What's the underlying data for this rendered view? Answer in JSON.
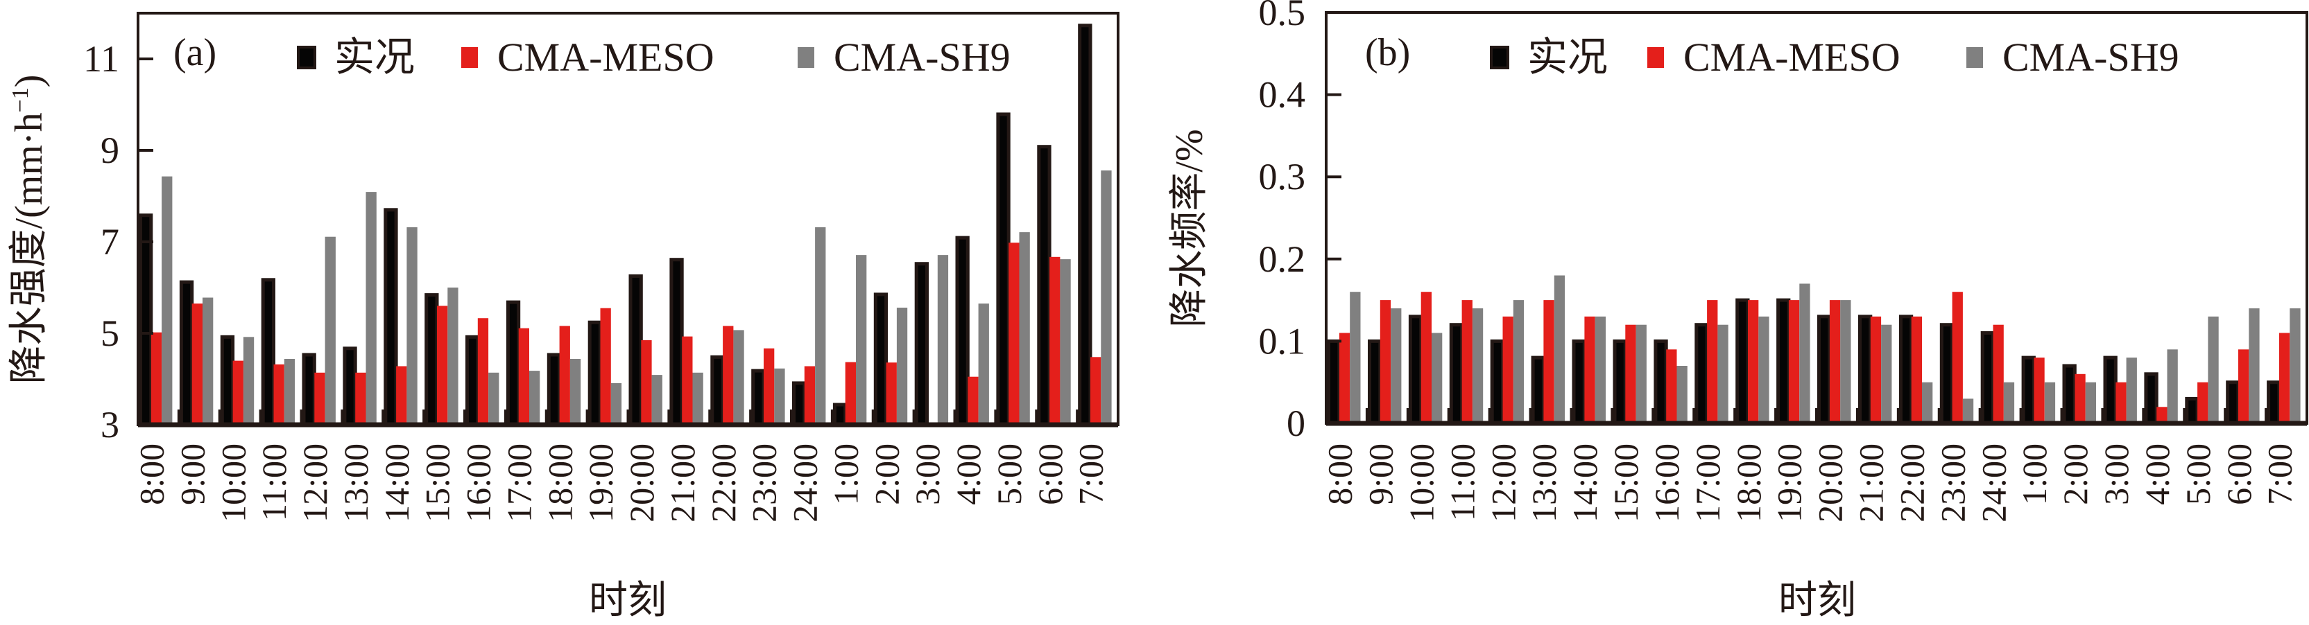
{
  "colors": {
    "observed": "#050505",
    "observed_outline": "#231815",
    "meso": "#e41f1b",
    "sh9": "#808080",
    "axis": "#231815"
  },
  "legend_labels": [
    "实况",
    "CMA-MESO",
    "CMA-SH9"
  ],
  "chart_data": [
    {
      "type": "bar",
      "panel_label": "(a)",
      "title": "",
      "xlabel": "时刻",
      "ylabel": "降水强度/(mm·h⁻¹)",
      "ylabel_parts": {
        "main": "降水强度/(mm·h",
        "sup": "−1",
        "close": ")"
      },
      "ylim": [
        3,
        12
      ],
      "yticks": [
        3,
        5,
        7,
        9,
        11
      ],
      "ytick_labels": [
        "3",
        "5",
        "7",
        "9",
        "11"
      ],
      "grid": false,
      "legend_position": "top",
      "categories": [
        "8:00",
        "9:00",
        "10:00",
        "11:00",
        "12:00",
        "13:00",
        "14:00",
        "15:00",
        "16:00",
        "17:00",
        "18:00",
        "19:00",
        "20:00",
        "21:00",
        "22:00",
        "23:00",
        "24:00",
        "1:00",
        "2:00",
        "3:00",
        "4:00",
        "5:00",
        "6:00",
        "7:00"
      ],
      "series": [
        {
          "name": "实况",
          "values": [
            7.58,
            6.12,
            4.92,
            6.17,
            4.53,
            4.67,
            7.7,
            5.84,
            4.92,
            5.68,
            4.53,
            5.24,
            6.25,
            6.61,
            4.48,
            4.18,
            3.91,
            3.44,
            5.85,
            6.52,
            7.09,
            9.79,
            9.08,
            11.73
          ]
        },
        {
          "name": "CMA-MESO",
          "values": [
            5.02,
            5.65,
            4.4,
            4.32,
            4.14,
            4.14,
            4.28,
            5.6,
            5.33,
            5.11,
            5.16,
            5.55,
            4.85,
            4.93,
            5.16,
            4.67,
            4.28,
            4.37,
            4.36,
            3.03,
            4.05,
            6.98,
            6.67,
            4.48
          ]
        },
        {
          "name": "CMA-SH9",
          "values": [
            8.43,
            5.78,
            4.92,
            4.44,
            7.11,
            8.09,
            7.32,
            6.0,
            4.14,
            4.18,
            4.44,
            3.91,
            4.09,
            4.14,
            5.07,
            4.23,
            7.32,
            6.71,
            5.56,
            6.71,
            5.65,
            7.21,
            6.62,
            8.56
          ]
        }
      ]
    },
    {
      "type": "bar",
      "panel_label": "(b)",
      "title": "",
      "xlabel": "时刻",
      "ylabel": "降水频率/%",
      "ylim": [
        0,
        0.5
      ],
      "yticks": [
        0,
        0.1,
        0.2,
        0.3,
        0.4,
        0.5
      ],
      "ytick_labels": [
        "0",
        "0.1",
        "0.2",
        "0.3",
        "0.4",
        "0.5"
      ],
      "grid": false,
      "legend_position": "top",
      "categories": [
        "8:00",
        "9:00",
        "10:00",
        "11:00",
        "12:00",
        "13:00",
        "14:00",
        "15:00",
        "16:00",
        "17:00",
        "18:00",
        "19:00",
        "20:00",
        "21:00",
        "22:00",
        "23:00",
        "24:00",
        "1:00",
        "2:00",
        "3:00",
        "4:00",
        "5:00",
        "6:00",
        "7:00"
      ],
      "series": [
        {
          "name": "实况",
          "values": [
            0.1,
            0.1,
            0.13,
            0.12,
            0.1,
            0.08,
            0.1,
            0.1,
            0.1,
            0.12,
            0.15,
            0.15,
            0.13,
            0.13,
            0.13,
            0.12,
            0.11,
            0.08,
            0.07,
            0.08,
            0.06,
            0.03,
            0.05,
            0.05
          ]
        },
        {
          "name": "CMA-MESO",
          "values": [
            0.11,
            0.15,
            0.16,
            0.15,
            0.13,
            0.15,
            0.13,
            0.12,
            0.09,
            0.15,
            0.15,
            0.15,
            0.15,
            0.13,
            0.13,
            0.16,
            0.12,
            0.08,
            0.06,
            0.05,
            0.02,
            0.05,
            0.09,
            0.11
          ]
        },
        {
          "name": "CMA-SH9",
          "values": [
            0.16,
            0.14,
            0.11,
            0.14,
            0.15,
            0.18,
            0.13,
            0.12,
            0.07,
            0.12,
            0.13,
            0.17,
            0.15,
            0.12,
            0.05,
            0.03,
            0.05,
            0.05,
            0.05,
            0.08,
            0.09,
            0.13,
            0.14,
            0.14
          ]
        }
      ]
    }
  ]
}
